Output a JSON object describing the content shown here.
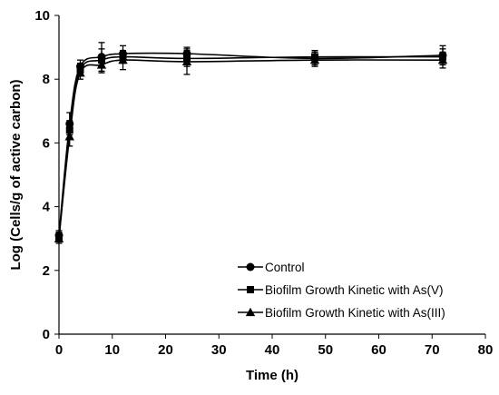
{
  "chart_data": {
    "type": "line",
    "title": "",
    "xlabel": "Time (h)",
    "ylabel": "Log (Cells/g of active carbon)",
    "xlim": [
      0,
      80
    ],
    "ylim": [
      0,
      10
    ],
    "x_ticks": [
      0,
      10,
      20,
      30,
      40,
      50,
      60,
      70,
      80
    ],
    "y_ticks": [
      0,
      2,
      4,
      6,
      8,
      10
    ],
    "grid": false,
    "legend_position": "bottom-right",
    "series": [
      {
        "name": "Control",
        "marker": "circle",
        "color": "#000000",
        "x": [
          0,
          2,
          4,
          8,
          12,
          24,
          48,
          72
        ],
        "y": [
          3.1,
          6.6,
          8.4,
          8.7,
          8.8,
          8.8,
          8.65,
          8.75
        ],
        "err": [
          0.15,
          0.35,
          0.2,
          0.45,
          0.25,
          0.2,
          0.2,
          0.3
        ]
      },
      {
        "name": "Biofilm Growth Kinetic with As(V)",
        "marker": "square",
        "color": "#000000",
        "x": [
          0,
          2,
          4,
          8,
          12,
          24,
          48,
          72
        ],
        "y": [
          3.05,
          6.4,
          8.3,
          8.6,
          8.7,
          8.65,
          8.7,
          8.7
        ],
        "err": [
          0.15,
          0.3,
          0.2,
          0.35,
          0.2,
          0.25,
          0.2,
          0.25
        ]
      },
      {
        "name": "Biofilm Growth Kinetic with As(III)",
        "marker": "triangle",
        "color": "#000000",
        "x": [
          0,
          2,
          4,
          8,
          12,
          24,
          48,
          72
        ],
        "y": [
          3.0,
          6.2,
          8.2,
          8.45,
          8.6,
          8.55,
          8.6,
          8.6
        ],
        "err": [
          0.15,
          0.3,
          0.2,
          0.25,
          0.3,
          0.4,
          0.2,
          0.25
        ]
      }
    ]
  }
}
